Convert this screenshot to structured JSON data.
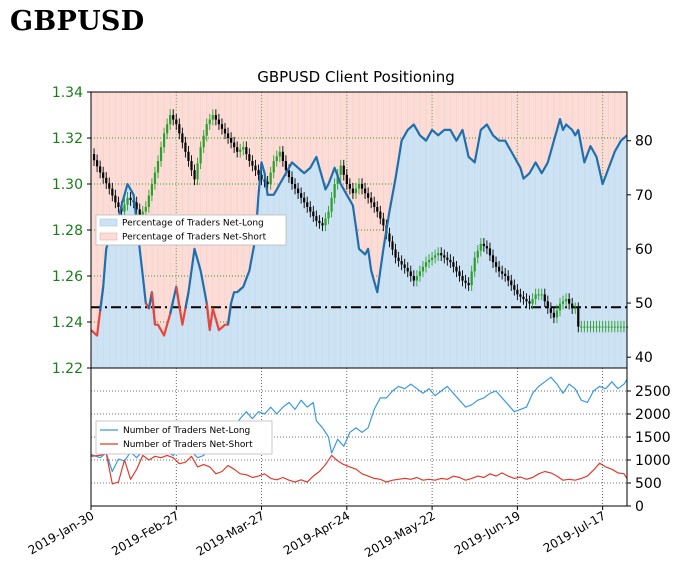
{
  "page": {
    "title": "GBPUSD"
  },
  "chart_data": {
    "type": "line",
    "title": "GBPUSD Client Positioning",
    "x_labels": [
      "2019-Jan-30",
      "2019-Feb-27",
      "2019-Mar-27",
      "2019-Apr-24",
      "2019-May-22",
      "2019-Jun-19",
      "2019-Jul-17"
    ],
    "price_axis": {
      "ticks": [
        "1.34",
        "1.32",
        "1.30",
        "1.28",
        "1.26",
        "1.24",
        "1.22"
      ],
      "ylim": [
        1.22,
        1.34
      ]
    },
    "percent_axis": {
      "ticks": [
        "80",
        "70",
        "60",
        "50",
        "40"
      ],
      "ylim": [
        38,
        89
      ]
    },
    "count_axis": {
      "ticks": [
        "2500",
        "2000",
        "1500",
        "1000",
        "500",
        "0"
      ],
      "ylim": [
        0,
        3000
      ]
    },
    "reference_level_percent": 50,
    "legend_top": [
      "Percentage of Traders Net-Long",
      "Percentage of Traders Net-Short"
    ],
    "legend_bottom": [
      "Number of Traders Net-Long",
      "Number of Traders Net-Short"
    ],
    "colors": {
      "up_candle": "#2ca02c",
      "down_candle": "#000000",
      "net_long_line": "#1f6fad",
      "net_short_line": "#e8453c",
      "net_long_fill": "#cde3f4",
      "net_short_fill": "#fbdcd6",
      "count_long": "#3a9ae0",
      "count_short": "#e03a2e",
      "grid": "#2a9a2a"
    },
    "series": {
      "price_close": [
        [
          0,
          1.313
        ],
        [
          3,
          1.305
        ],
        [
          6,
          1.298
        ],
        [
          8,
          1.292
        ],
        [
          10,
          1.288
        ],
        [
          12,
          1.294
        ],
        [
          14,
          1.292
        ],
        [
          16,
          1.286
        ],
        [
          18,
          1.29
        ],
        [
          20,
          1.3
        ],
        [
          22,
          1.31
        ],
        [
          24,
          1.322
        ],
        [
          26,
          1.33
        ],
        [
          28,
          1.326
        ],
        [
          30,
          1.318
        ],
        [
          32,
          1.31
        ],
        [
          34,
          1.302
        ],
        [
          36,
          1.316
        ],
        [
          38,
          1.326
        ],
        [
          40,
          1.33
        ],
        [
          42,
          1.326
        ],
        [
          44,
          1.322
        ],
        [
          46,
          1.318
        ],
        [
          48,
          1.314
        ],
        [
          50,
          1.316
        ],
        [
          52,
          1.31
        ],
        [
          54,
          1.306
        ],
        [
          56,
          1.302
        ],
        [
          58,
          1.3
        ],
        [
          60,
          1.31
        ],
        [
          62,
          1.314
        ],
        [
          64,
          1.306
        ],
        [
          66,
          1.3
        ],
        [
          68,
          1.296
        ],
        [
          70,
          1.292
        ],
        [
          72,
          1.288
        ],
        [
          74,
          1.284
        ],
        [
          76,
          1.282
        ],
        [
          78,
          1.288
        ],
        [
          80,
          1.3
        ],
        [
          82,
          1.308
        ],
        [
          84,
          1.3
        ],
        [
          86,
          1.296
        ],
        [
          88,
          1.3
        ],
        [
          90,
          1.296
        ],
        [
          92,
          1.292
        ],
        [
          94,
          1.288
        ],
        [
          96,
          1.282
        ],
        [
          98,
          1.275
        ],
        [
          100,
          1.268
        ],
        [
          102,
          1.265
        ],
        [
          104,
          1.262
        ],
        [
          106,
          1.258
        ],
        [
          108,
          1.262
        ],
        [
          110,
          1.266
        ],
        [
          112,
          1.268
        ],
        [
          114,
          1.27
        ],
        [
          116,
          1.268
        ],
        [
          118,
          1.266
        ],
        [
          120,
          1.262
        ],
        [
          122,
          1.258
        ],
        [
          124,
          1.256
        ],
        [
          126,
          1.268
        ],
        [
          128,
          1.274
        ],
        [
          130,
          1.272
        ],
        [
          132,
          1.266
        ],
        [
          134,
          1.262
        ],
        [
          136,
          1.26
        ],
        [
          138,
          1.256
        ],
        [
          140,
          1.252
        ],
        [
          142,
          1.25
        ],
        [
          144,
          1.248
        ],
        [
          146,
          1.252
        ],
        [
          148,
          1.252
        ],
        [
          150,
          1.246
        ],
        [
          152,
          1.242
        ],
        [
          154,
          1.248
        ],
        [
          156,
          1.25
        ],
        [
          158,
          1.246
        ],
        [
          159,
          1.246
        ],
        [
          160,
          1.238
        ]
      ],
      "pct_net_long": [
        [
          0,
          45
        ],
        [
          2,
          44
        ],
        [
          4,
          53
        ],
        [
          5,
          60
        ],
        [
          6,
          62
        ],
        [
          8,
          63
        ],
        [
          10,
          68
        ],
        [
          12,
          72
        ],
        [
          14,
          70
        ],
        [
          16,
          60
        ],
        [
          18,
          50
        ],
        [
          19,
          49
        ],
        [
          20,
          52
        ],
        [
          21,
          46
        ],
        [
          22,
          46
        ],
        [
          24,
          44
        ],
        [
          26,
          48
        ],
        [
          28,
          53
        ],
        [
          30,
          46
        ],
        [
          32,
          52
        ],
        [
          34,
          60
        ],
        [
          36,
          56
        ],
        [
          38,
          50
        ],
        [
          39,
          45
        ],
        [
          40,
          49
        ],
        [
          42,
          45
        ],
        [
          44,
          46
        ],
        [
          45,
          46
        ],
        [
          46,
          50
        ],
        [
          47,
          52
        ],
        [
          48,
          52
        ],
        [
          50,
          53
        ],
        [
          52,
          56
        ],
        [
          54,
          62
        ],
        [
          55,
          70
        ],
        [
          56,
          76
        ],
        [
          57,
          74
        ],
        [
          58,
          70
        ],
        [
          60,
          70
        ],
        [
          62,
          72
        ],
        [
          64,
          74
        ],
        [
          66,
          76
        ],
        [
          68,
          75
        ],
        [
          70,
          74
        ],
        [
          72,
          75
        ],
        [
          74,
          77
        ],
        [
          76,
          73
        ],
        [
          77,
          71
        ],
        [
          78,
          72
        ],
        [
          80,
          75
        ],
        [
          82,
          72
        ],
        [
          84,
          70
        ],
        [
          86,
          68
        ],
        [
          88,
          60
        ],
        [
          90,
          59
        ],
        [
          91,
          60
        ],
        [
          92,
          56
        ],
        [
          94,
          52
        ],
        [
          96,
          60
        ],
        [
          98,
          67
        ],
        [
          100,
          73
        ],
        [
          102,
          80
        ],
        [
          104,
          82
        ],
        [
          106,
          83
        ],
        [
          108,
          81
        ],
        [
          110,
          80
        ],
        [
          112,
          82
        ],
        [
          114,
          81
        ],
        [
          116,
          82
        ],
        [
          118,
          82
        ],
        [
          120,
          80
        ],
        [
          122,
          82
        ],
        [
          124,
          77
        ],
        [
          126,
          76
        ],
        [
          128,
          82
        ],
        [
          130,
          83
        ],
        [
          132,
          81
        ],
        [
          134,
          80
        ],
        [
          136,
          80
        ],
        [
          138,
          78
        ],
        [
          140,
          76
        ],
        [
          141,
          75
        ],
        [
          142,
          73
        ],
        [
          144,
          74
        ],
        [
          146,
          76
        ],
        [
          148,
          74
        ],
        [
          150,
          76
        ],
        [
          152,
          80
        ],
        [
          154,
          84
        ],
        [
          155,
          82
        ],
        [
          156,
          83
        ],
        [
          158,
          82
        ],
        [
          159,
          81
        ],
        [
          160,
          82
        ],
        [
          162,
          76
        ],
        [
          164,
          79
        ],
        [
          166,
          77
        ],
        [
          168,
          72
        ],
        [
          170,
          75
        ],
        [
          172,
          78
        ],
        [
          174,
          80
        ],
        [
          176,
          81
        ]
      ],
      "count_long": [
        [
          0,
          1120
        ],
        [
          3,
          1050
        ],
        [
          5,
          1150
        ],
        [
          7,
          750
        ],
        [
          9,
          1020
        ],
        [
          11,
          980
        ],
        [
          13,
          1170
        ],
        [
          15,
          1050
        ],
        [
          17,
          1200
        ],
        [
          19,
          1180
        ],
        [
          21,
          1230
        ],
        [
          23,
          1250
        ],
        [
          25,
          1170
        ],
        [
          27,
          1100
        ],
        [
          29,
          1230
        ],
        [
          31,
          1300
        ],
        [
          33,
          1180
        ],
        [
          35,
          1050
        ],
        [
          37,
          1100
        ],
        [
          39,
          1320
        ],
        [
          41,
          1450
        ],
        [
          43,
          1600
        ],
        [
          45,
          1560
        ],
        [
          47,
          1700
        ],
        [
          49,
          1900
        ],
        [
          51,
          2050
        ],
        [
          53,
          1900
        ],
        [
          55,
          2050
        ],
        [
          57,
          2000
        ],
        [
          59,
          2150
        ],
        [
          61,
          2000
        ],
        [
          63,
          2150
        ],
        [
          65,
          2250
        ],
        [
          67,
          2100
        ],
        [
          69,
          2300
        ],
        [
          71,
          2150
        ],
        [
          73,
          2250
        ],
        [
          74,
          1850
        ],
        [
          76,
          1700
        ],
        [
          78,
          1500
        ],
        [
          79,
          1150
        ],
        [
          81,
          1450
        ],
        [
          83,
          1300
        ],
        [
          85,
          1600
        ],
        [
          87,
          1700
        ],
        [
          89,
          1600
        ],
        [
          91,
          1700
        ],
        [
          93,
          2100
        ],
        [
          95,
          2350
        ],
        [
          97,
          2350
        ],
        [
          99,
          2500
        ],
        [
          101,
          2600
        ],
        [
          103,
          2550
        ],
        [
          105,
          2650
        ],
        [
          107,
          2550
        ],
        [
          109,
          2450
        ],
        [
          111,
          2550
        ],
        [
          113,
          2400
        ],
        [
          115,
          2500
        ],
        [
          117,
          2600
        ],
        [
          119,
          2450
        ],
        [
          121,
          2300
        ],
        [
          123,
          2150
        ],
        [
          125,
          2200
        ],
        [
          127,
          2300
        ],
        [
          129,
          2350
        ],
        [
          131,
          2450
        ],
        [
          133,
          2500
        ],
        [
          135,
          2350
        ],
        [
          137,
          2200
        ],
        [
          139,
          2050
        ],
        [
          141,
          2100
        ],
        [
          143,
          2150
        ],
        [
          145,
          2450
        ],
        [
          147,
          2600
        ],
        [
          149,
          2700
        ],
        [
          151,
          2800
        ],
        [
          153,
          2650
        ],
        [
          155,
          2450
        ],
        [
          157,
          2650
        ],
        [
          159,
          2550
        ],
        [
          161,
          2300
        ],
        [
          163,
          2250
        ],
        [
          165,
          2500
        ],
        [
          167,
          2600
        ],
        [
          169,
          2550
        ],
        [
          171,
          2700
        ],
        [
          173,
          2550
        ],
        [
          175,
          2650
        ],
        [
          176,
          2750
        ]
      ],
      "count_short": [
        [
          0,
          1080
        ],
        [
          3,
          1100
        ],
        [
          5,
          1150
        ],
        [
          7,
          480
        ],
        [
          9,
          520
        ],
        [
          11,
          1000
        ],
        [
          13,
          580
        ],
        [
          15,
          800
        ],
        [
          17,
          1100
        ],
        [
          19,
          1000
        ],
        [
          21,
          1080
        ],
        [
          23,
          1050
        ],
        [
          25,
          1100
        ],
        [
          27,
          1050
        ],
        [
          29,
          920
        ],
        [
          31,
          950
        ],
        [
          33,
          1080
        ],
        [
          35,
          850
        ],
        [
          37,
          900
        ],
        [
          39,
          850
        ],
        [
          41,
          700
        ],
        [
          43,
          750
        ],
        [
          45,
          880
        ],
        [
          47,
          800
        ],
        [
          49,
          700
        ],
        [
          51,
          680
        ],
        [
          53,
          620
        ],
        [
          55,
          650
        ],
        [
          57,
          700
        ],
        [
          59,
          600
        ],
        [
          61,
          570
        ],
        [
          63,
          620
        ],
        [
          65,
          560
        ],
        [
          67,
          520
        ],
        [
          69,
          570
        ],
        [
          71,
          520
        ],
        [
          73,
          650
        ],
        [
          75,
          750
        ],
        [
          77,
          900
        ],
        [
          79,
          1100
        ],
        [
          81,
          980
        ],
        [
          83,
          900
        ],
        [
          85,
          850
        ],
        [
          87,
          800
        ],
        [
          89,
          700
        ],
        [
          91,
          650
        ],
        [
          93,
          600
        ],
        [
          95,
          580
        ],
        [
          97,
          520
        ],
        [
          99,
          560
        ],
        [
          101,
          580
        ],
        [
          103,
          600
        ],
        [
          105,
          580
        ],
        [
          107,
          620
        ],
        [
          109,
          560
        ],
        [
          111,
          580
        ],
        [
          113,
          560
        ],
        [
          115,
          600
        ],
        [
          117,
          580
        ],
        [
          119,
          650
        ],
        [
          121,
          620
        ],
        [
          123,
          560
        ],
        [
          125,
          600
        ],
        [
          127,
          650
        ],
        [
          129,
          620
        ],
        [
          131,
          700
        ],
        [
          133,
          650
        ],
        [
          135,
          720
        ],
        [
          137,
          650
        ],
        [
          139,
          600
        ],
        [
          141,
          630
        ],
        [
          143,
          580
        ],
        [
          145,
          620
        ],
        [
          147,
          700
        ],
        [
          149,
          750
        ],
        [
          151,
          720
        ],
        [
          153,
          650
        ],
        [
          155,
          560
        ],
        [
          157,
          580
        ],
        [
          159,
          560
        ],
        [
          161,
          600
        ],
        [
          163,
          650
        ],
        [
          165,
          780
        ],
        [
          167,
          930
        ],
        [
          169,
          850
        ],
        [
          171,
          800
        ],
        [
          173,
          720
        ],
        [
          175,
          700
        ],
        [
          176,
          600
        ]
      ]
    }
  }
}
